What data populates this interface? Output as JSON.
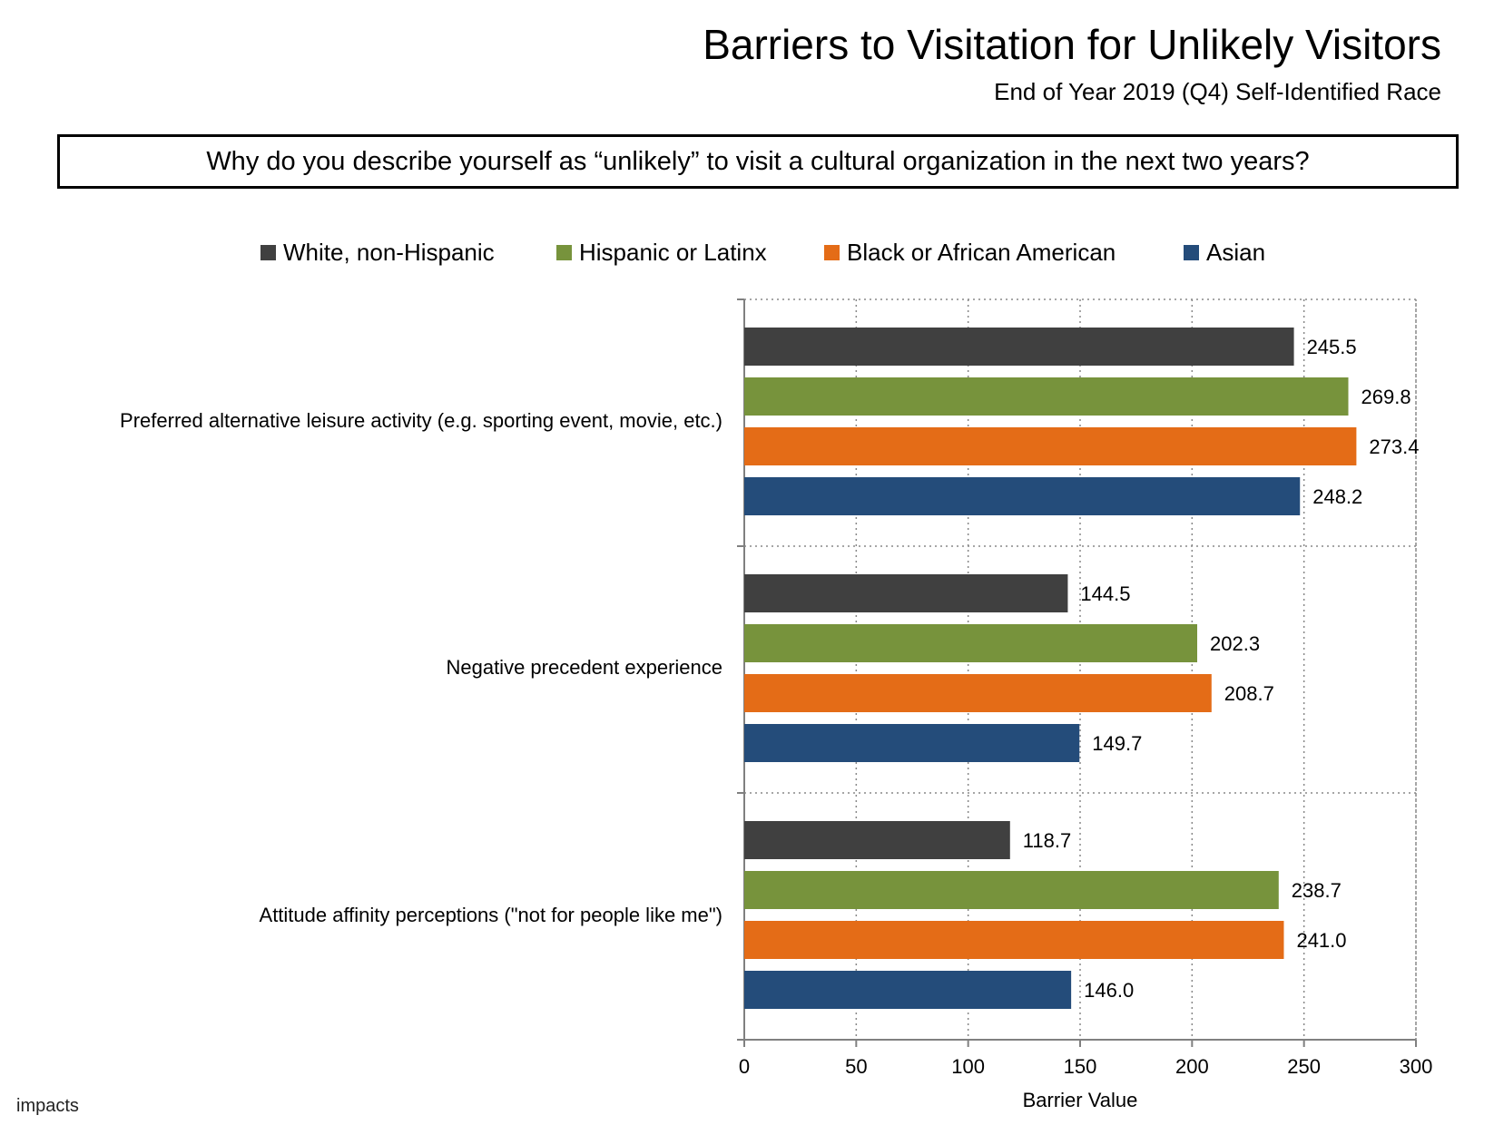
{
  "header": {
    "title": "Barriers to Visitation for Unlikely Visitors",
    "subtitle": "End of Year 2019 (Q4) Self-Identified Race"
  },
  "question": "Why do you describe yourself as “unlikely” to visit a cultural organization in the next two years?",
  "footer": {
    "logo_text": "impacts"
  },
  "chart_data": {
    "type": "bar",
    "orientation": "horizontal",
    "categories": [
      "Preferred alternative leisure activity (e.g. sporting event, movie, etc.)",
      "Negative precedent experience",
      "Attitude affinity perceptions (\"not for people like me\")"
    ],
    "series": [
      {
        "name": "White, non-Hispanic",
        "color": "#404040",
        "values": [
          245.5,
          144.5,
          118.7
        ],
        "labels": [
          "245.5",
          "144.5",
          "118.7"
        ]
      },
      {
        "name": "Hispanic or Latinx",
        "color": "#77933C",
        "values": [
          269.8,
          202.3,
          238.7
        ],
        "labels": [
          "269.8",
          "202.3",
          "238.7"
        ]
      },
      {
        "name": "Black or African American",
        "color": "#E46C17",
        "values": [
          273.4,
          208.7,
          241.0
        ],
        "labels": [
          "273.4",
          "208.7",
          "241.0"
        ]
      },
      {
        "name": "Asian",
        "color": "#244C7A",
        "values": [
          248.2,
          149.7,
          146.0
        ],
        "labels": [
          "248.2",
          "149.7",
          "146.0"
        ]
      }
    ],
    "xlabel": "Barrier Value",
    "ylabel": "",
    "xlim": [
      0,
      300
    ],
    "xticks": [
      "0",
      "50",
      "100",
      "150",
      "200",
      "250",
      "300"
    ],
    "grid": true,
    "legend_position": "top"
  }
}
